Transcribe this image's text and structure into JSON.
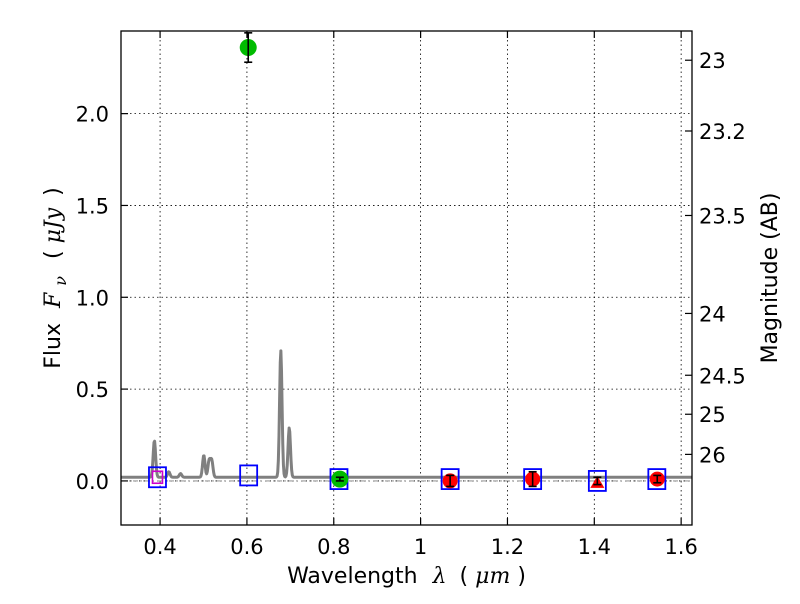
{
  "chart_data": {
    "type": "scatter",
    "title": "",
    "xlabel": {
      "prefix": "Wavelength",
      "symbol": "λ",
      "units_open": "(",
      "units": "μm",
      "units_close": ")"
    },
    "ylabel": {
      "prefix": "Flux",
      "symbol": "F",
      "subscript": "ν",
      "units_open": "(",
      "units": "μJy",
      "units_close": ")"
    },
    "y2label": "Magnitude (AB)",
    "xlim": [
      0.31,
      1.625
    ],
    "ylim": [
      -0.24,
      2.45
    ],
    "grid": true,
    "x_ticks": [
      0.4,
      0.6,
      0.8,
      1.0,
      1.2,
      1.4,
      1.6
    ],
    "x_tick_labels": [
      "0.4",
      "0.6",
      "0.8",
      "1",
      "1.2",
      "1.4",
      "1.6"
    ],
    "y_ticks": [
      0.0,
      0.5,
      1.0,
      1.5,
      2.0
    ],
    "y_tick_labels": [
      "0.0",
      "0.5",
      "1.0",
      "1.5",
      "2.0"
    ],
    "magnitude_ticks": [
      23,
      23.2,
      23.5,
      24,
      24.5,
      25,
      26
    ],
    "magnitude_tick_labels": [
      "23",
      "23.2",
      "23.5",
      "24",
      "24.5",
      "25",
      "26"
    ],
    "model_spectrum": {
      "baseline": 0.02,
      "emission_lines": [
        {
          "x": 0.3869,
          "y": 0.22
        },
        {
          "x": 0.42,
          "y": 0.05
        },
        {
          "x": 0.4471,
          "y": 0.04
        },
        {
          "x": 0.5007,
          "y": 0.14
        },
        {
          "x": 0.513,
          "y": 0.11
        },
        {
          "x": 0.519,
          "y": 0.11
        },
        {
          "x": 0.678,
          "y": 0.71
        },
        {
          "x": 0.6975,
          "y": 0.29
        }
      ],
      "zero_level": 0.0
    },
    "model_points": [
      {
        "x": 0.394,
        "y": 0.02
      },
      {
        "x": 0.604,
        "y": 0.03
      },
      {
        "x": 0.812,
        "y": 0.01
      },
      {
        "x": 1.068,
        "y": 0.01
      },
      {
        "x": 1.258,
        "y": 0.01
      },
      {
        "x": 1.407,
        "y": 0.0
      },
      {
        "x": 1.544,
        "y": 0.01
      }
    ],
    "observed_points": [
      {
        "x": 0.394,
        "y": 0.02,
        "err": 0.02,
        "kind": "purple"
      },
      {
        "x": 0.603,
        "y": 2.36,
        "err": 0.08,
        "kind": "green"
      },
      {
        "x": 0.814,
        "y": 0.01,
        "err": 0.01,
        "kind": "green"
      },
      {
        "x": 1.068,
        "y": 0.0,
        "err": 0.03,
        "kind": "red"
      },
      {
        "x": 1.258,
        "y": 0.01,
        "err": 0.04,
        "kind": "red"
      },
      {
        "x": 1.407,
        "y": 0.0,
        "err": 0.02,
        "kind": "red-limit"
      },
      {
        "x": 1.545,
        "y": 0.01,
        "err": 0.02,
        "kind": "red"
      }
    ],
    "colors": {
      "axis": "#000000",
      "grid": "#000000",
      "spectrum": "#808080",
      "zero_line": "#808080",
      "model_box": "#0000ff",
      "green": "#00bb00",
      "red": "#ff0000",
      "purple": "#cc00cc",
      "errorbar": "#000000"
    }
  }
}
